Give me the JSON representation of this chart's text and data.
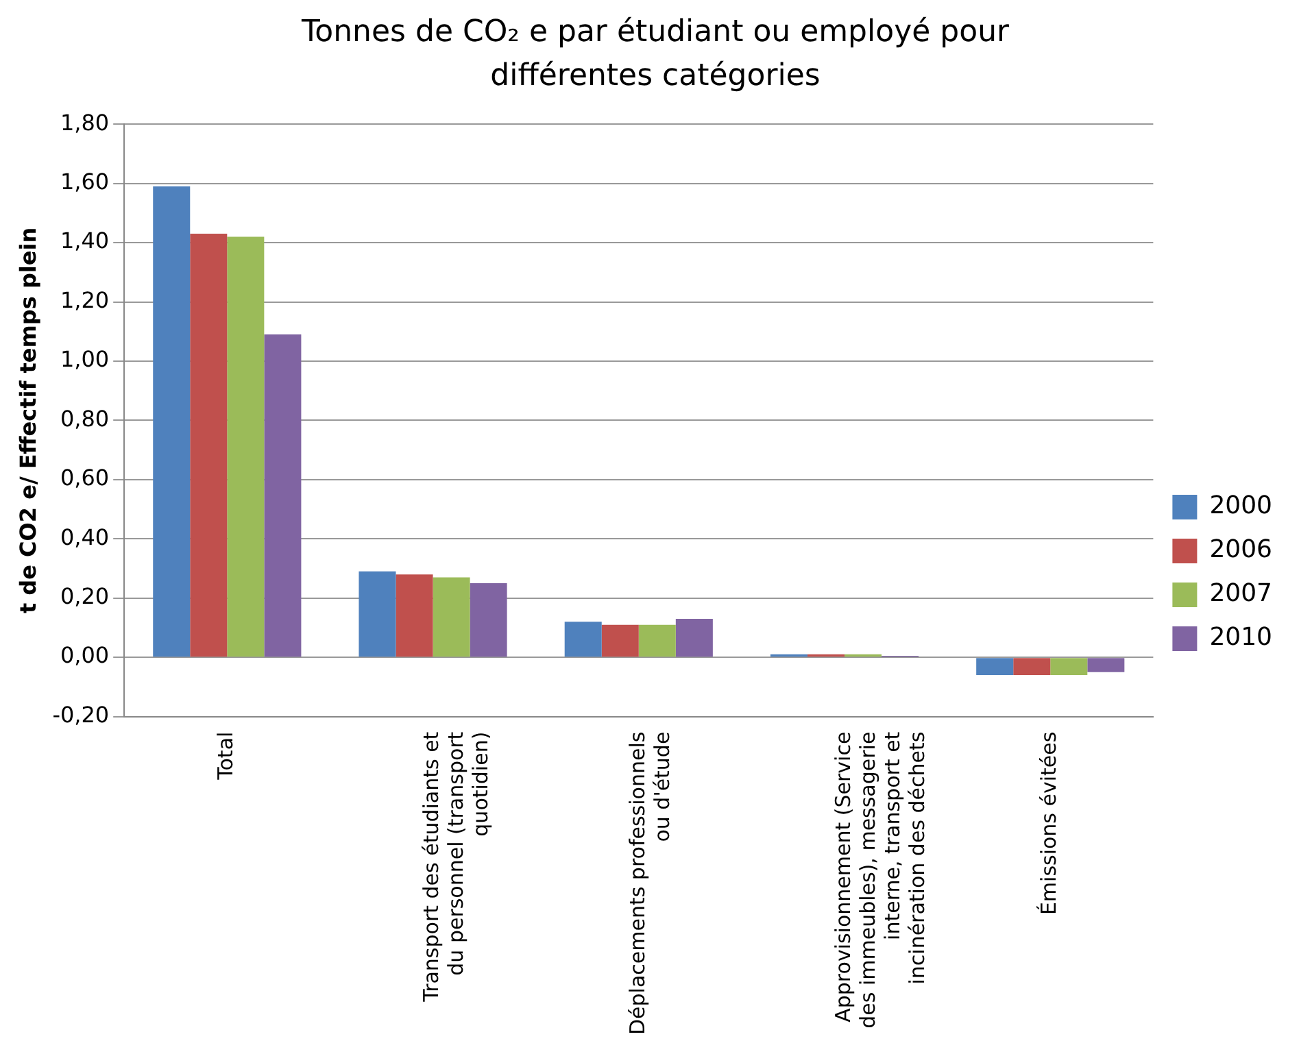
{
  "chart_data": {
    "type": "bar",
    "title": "Tonnes de CO₂ e par étudiant ou employé pour différentes catégories",
    "ylabel": "t de CO2 e/ Effectif temps plein",
    "categories": [
      "Total",
      "Transport des étudiants et du personnel (transport quotidien)",
      "Déplacements professionnels ou d'étude",
      "Approvisionnement (Service des immeubles), messagerie interne, transport et incinération des déchets",
      "Émissions évitées"
    ],
    "series": [
      {
        "name": "2000",
        "color": "#4f81bd",
        "values": [
          1.59,
          0.29,
          0.12,
          0.01,
          -0.06
        ]
      },
      {
        "name": "2006",
        "color": "#c0504d",
        "values": [
          1.43,
          0.28,
          0.11,
          0.01,
          -0.06
        ]
      },
      {
        "name": "2007",
        "color": "#9bbb59",
        "values": [
          1.42,
          0.27,
          0.11,
          0.01,
          -0.06
        ]
      },
      {
        "name": "2010",
        "color": "#8064a2",
        "values": [
          1.09,
          0.25,
          0.13,
          0.005,
          -0.05
        ]
      }
    ],
    "ylim": [
      -0.2,
      1.8
    ],
    "yticks": [
      {
        "value": -0.2,
        "label": "-0,20"
      },
      {
        "value": 0,
        "label": "0,00"
      },
      {
        "value": 0.2,
        "label": "0,20"
      },
      {
        "value": 0.4,
        "label": "0,40"
      },
      {
        "value": 0.6,
        "label": "0,60"
      },
      {
        "value": 0.8,
        "label": "0,80"
      },
      {
        "value": 1,
        "label": "1,00"
      },
      {
        "value": 1.2,
        "label": "1,20"
      },
      {
        "value": 1.4,
        "label": "1,40"
      },
      {
        "value": 1.6,
        "label": "1,60"
      },
      {
        "value": 1.8,
        "label": "1,80"
      }
    ],
    "grid": "y",
    "legend": "right"
  }
}
